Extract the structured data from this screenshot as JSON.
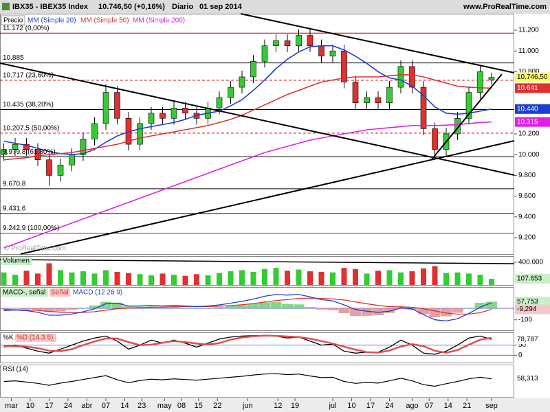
{
  "chart_data": {
    "type": "candlestick",
    "symbol": "IBX35 - IBEX35 Index",
    "quote": "10.746,50 (+0,16%)",
    "period": "Diario",
    "date": "01 sep 2014",
    "site": "www.ProRealTime.com",
    "watermark": "© ProRealTime.com",
    "price_label": "Precio",
    "close_label": "10.746,50",
    "up_color": "#33cc33",
    "down_color": "#e03030",
    "xlim": [
      -3,
      133
    ],
    "xticks": [
      {
        "value": 0,
        "label": "mar"
      },
      {
        "value": 5,
        "label": "10"
      },
      {
        "value": 10,
        "label": "17"
      },
      {
        "value": 15,
        "label": "24"
      },
      {
        "value": 20,
        "label": "abr"
      },
      {
        "value": 25,
        "label": "07"
      },
      {
        "value": 30,
        "label": "14"
      },
      {
        "value": 34.5,
        "label": "23"
      },
      {
        "value": 40.5,
        "label": "may"
      },
      {
        "value": 45,
        "label": "08"
      },
      {
        "value": 49.5,
        "label": "15"
      },
      {
        "value": 54.5,
        "label": "22"
      },
      {
        "value": 62.5,
        "label": "jun"
      },
      {
        "value": 70.5,
        "label": "12"
      },
      {
        "value": 75,
        "label": "19"
      },
      {
        "value": 85,
        "label": "jul"
      },
      {
        "value": 90,
        "label": "10"
      },
      {
        "value": 95,
        "label": "17"
      },
      {
        "value": 100,
        "label": "24"
      },
      {
        "value": 106,
        "label": "ago"
      },
      {
        "value": 110.5,
        "label": "07"
      },
      {
        "value": 115.5,
        "label": "14"
      },
      {
        "value": 120.5,
        "label": "21"
      },
      {
        "value": 127,
        "label": "sep"
      }
    ],
    "ylim": [
      9041,
      11359
    ],
    "yticks": [
      {
        "value": 11200,
        "label": "11.200"
      },
      {
        "value": 11000,
        "label": "11.000"
      },
      {
        "value": 10800,
        "label": "10.800"
      },
      {
        "value": 10200,
        "label": "10.200"
      },
      {
        "value": 10000,
        "label": "10.000"
      },
      {
        "value": 9800,
        "label": "9.800"
      },
      {
        "value": 9600,
        "label": "9.600"
      },
      {
        "value": 9400,
        "label": "9.400"
      },
      {
        "value": 9200,
        "label": "9.200"
      }
    ],
    "x": [
      -2,
      1,
      4,
      7,
      10,
      13,
      16,
      19,
      22,
      25,
      28,
      31,
      34,
      37,
      40,
      43,
      46,
      49,
      52,
      55,
      58,
      61,
      64,
      67,
      70,
      73,
      76,
      79,
      82,
      85,
      88,
      91,
      94,
      97,
      100,
      103,
      106,
      109,
      112,
      115,
      118,
      121,
      124,
      127
    ],
    "open": [
      10000,
      10050,
      10100,
      10050,
      9950,
      9800,
      9900,
      10000,
      10150,
      10300,
      10600,
      10350,
      10100,
      10300,
      10400,
      10350,
      10450,
      10400,
      10350,
      10450,
      10550,
      10650,
      10750,
      10900,
      11050,
      11100,
      11050,
      11150,
      11050,
      10950,
      11000,
      10700,
      10500,
      10550,
      10500,
      10650,
      10850,
      10650,
      10250,
      10050,
      10200,
      10350,
      10600,
      10720
    ],
    "high": [
      10110,
      10160,
      10160,
      10110,
      10010,
      9960,
      10060,
      10210,
      10360,
      10680,
      10660,
      10410,
      10360,
      10460,
      10460,
      10510,
      10510,
      10460,
      10510,
      10610,
      10710,
      10810,
      10960,
      11110,
      11160,
      11160,
      11210,
      11210,
      11110,
      11060,
      11060,
      10760,
      10610,
      10610,
      10710,
      10910,
      10910,
      10710,
      10310,
      10260,
      10410,
      10660,
      10860,
      10790
    ],
    "low": [
      9940,
      9990,
      9990,
      9890,
      9700,
      9740,
      9840,
      9940,
      10090,
      10240,
      10290,
      10040,
      10040,
      10240,
      10290,
      10290,
      10340,
      10290,
      10290,
      10390,
      10490,
      10590,
      10690,
      10840,
      10990,
      10990,
      10990,
      10990,
      10890,
      10890,
      10640,
      10440,
      10440,
      10440,
      10440,
      10590,
      10590,
      10190,
      9980,
      9990,
      10140,
      10290,
      10540,
      10680
    ],
    "close": [
      10050,
      10100,
      10050,
      9950,
      9800,
      9900,
      10000,
      10150,
      10300,
      10600,
      10350,
      10100,
      10300,
      10400,
      10350,
      10450,
      10400,
      10350,
      10450,
      10550,
      10650,
      10750,
      10900,
      11050,
      11100,
      11050,
      11150,
      11050,
      10950,
      11000,
      10700,
      10500,
      10550,
      10500,
      10650,
      10850,
      10650,
      10250,
      10050,
      10200,
      10350,
      10600,
      10800,
      10746.5
    ],
    "series": [
      {
        "name": "MM (Simple 20)",
        "color": "#1f3fd0",
        "last_label": "10.440",
        "values": [
          10130,
          10110,
          10090,
          10060,
          10030,
          10010,
          10000,
          10010,
          10050,
          10120,
          10180,
          10220,
          10250,
          10270,
          10290,
          10310,
          10340,
          10380,
          10400,
          10420,
          10470,
          10530,
          10620,
          10720,
          10830,
          10920,
          10990,
          11040,
          11050,
          11050,
          11010,
          10950,
          10880,
          10800,
          10740,
          10720,
          10660,
          10570,
          10460,
          10400,
          10390,
          10400,
          10420,
          10440
        ]
      },
      {
        "name": "MM (Simple 50)",
        "color": "#e03030",
        "last_label": "10.641",
        "values": [
          9950,
          9960,
          9970,
          9990,
          10000,
          10010,
          10020,
          10040,
          10060,
          10080,
          10100,
          10130,
          10160,
          10180,
          10200,
          10220,
          10240,
          10260,
          10280,
          10310,
          10340,
          10380,
          10430,
          10480,
          10530,
          10580,
          10620,
          10660,
          10700,
          10720,
          10740,
          10750,
          10750,
          10750,
          10760,
          10770,
          10770,
          10750,
          10720,
          10690,
          10660,
          10650,
          10645,
          10641
        ]
      },
      {
        "name": "MM (Simple 200)",
        "color": "#e020e0",
        "last_label": "10.315",
        "values": [
          9100,
          9140,
          9180,
          9220,
          9260,
          9300,
          9340,
          9380,
          9420,
          9460,
          9500,
          9540,
          9580,
          9620,
          9660,
          9700,
          9740,
          9780,
          9820,
          9860,
          9900,
          9940,
          9980,
          10020,
          10050,
          10080,
          10110,
          10140,
          10160,
          10180,
          10200,
          10220,
          10240,
          10250,
          10260,
          10270,
          10280,
          10280,
          10280,
          10285,
          10290,
          10300,
          10310,
          10315
        ]
      }
    ],
    "levels": [
      {
        "value": 11172,
        "label": "11.172 (0,00%)",
        "color": "#c00000",
        "dashed": false
      },
      {
        "value": 10885,
        "label": "10.885",
        "color": "#000000",
        "dashed": false
      },
      {
        "value": 10717,
        "label": "10.717 (23,60%)",
        "color": "#c00000",
        "dashed": true
      },
      {
        "value": 10435,
        "label": "10.435 (38,20%)",
        "color": "#000000",
        "dashed": false
      },
      {
        "value": 10207.5,
        "label": "10.207,5 (50,00%)",
        "color": "#c00000",
        "dashed": true
      },
      {
        "value": 9979.8,
        "label": "9.979,8 (61,80%)",
        "color": "#000000",
        "dashed": false
      },
      {
        "value": 9670.8,
        "label": "9.670,8",
        "color": "#000000",
        "dashed": false
      },
      {
        "value": 9431.6,
        "label": "9.431,6",
        "color": "#000000",
        "dashed": false
      },
      {
        "value": 9242.9,
        "label": "9.242,9 (100,00%)",
        "color": "#c00000",
        "dashed": false
      }
    ],
    "volume": {
      "name": "Volumen",
      "last_label": "107.653",
      "ylim": [
        0,
        494000
      ],
      "yticks": [
        {
          "value": 400000,
          "label": "400.000"
        }
      ],
      "values": [
        220000,
        180000,
        250000,
        200000,
        380000,
        260000,
        220000,
        240000,
        200000,
        260000,
        230000,
        210000,
        190000,
        170000,
        200000,
        180000,
        160000,
        190000,
        170000,
        210000,
        240000,
        260000,
        230000,
        280000,
        300000,
        250000,
        270000,
        240000,
        230000,
        220000,
        300000,
        280000,
        200000,
        250000,
        260000,
        220000,
        240000,
        290000,
        330000,
        210000,
        220000,
        200000,
        180000,
        107653
      ]
    },
    "macd": {
      "ylim": [
        -197,
        179
      ],
      "yticks": [
        -100
      ],
      "series": [
        {
          "name": "MACD-, señal",
          "color": "#66cc66",
          "negative_color": "#e08888",
          "last_label": "57,753",
          "bars": true,
          "values": [
            -10,
            -3,
            -6,
            -17,
            -33,
            -26,
            -13,
            6,
            25,
            56,
            49,
            19,
            15,
            16,
            9,
            11,
            5,
            0,
            4,
            11,
            21,
            29,
            39,
            51,
            53,
            38,
            34,
            11,
            -11,
            -17,
            -42,
            -66,
            -65,
            -60,
            -40,
            -8,
            -14,
            -51,
            -77,
            -69,
            -39,
            5,
            48,
            57.753
          ]
        },
        {
          "name": "Señal",
          "color": "#e03030",
          "last_label": "-9,294",
          "values": [
            -10,
            -12,
            -14,
            -18,
            -27,
            -34,
            -37,
            -36,
            -30,
            -16,
            -4,
            1,
            5,
            9,
            11,
            14,
            15,
            15,
            16,
            19,
            24,
            31,
            41,
            54,
            67,
            77,
            86,
            89,
            86,
            82,
            72,
            56,
            40,
            25,
            15,
            13,
            9,
            -4,
            -23,
            -41,
            -51,
            -50,
            -38,
            -9.294
          ]
        },
        {
          "name": "MACD (12 26 9)",
          "color": "#1f3fd0",
          "values": [
            -20,
            -15,
            -20,
            -35,
            -60,
            -60,
            -50,
            -30,
            -5,
            40,
            45,
            20,
            20,
            25,
            20,
            25,
            20,
            15,
            20,
            30,
            45,
            60,
            80,
            105,
            120,
            115,
            120,
            100,
            75,
            65,
            30,
            -10,
            -25,
            -35,
            -25,
            5,
            -5,
            -55,
            -100,
            -110,
            -90,
            -45,
            10,
            48.459
          ]
        }
      ]
    },
    "stochastic": {
      "ylim": [
        -40,
        110
      ],
      "yticks": [
        0,
        50
      ],
      "series": [
        {
          "name": "%K",
          "color": "#000000",
          "last_label": "78,787",
          "values": [
            40,
            50,
            35,
            20,
            10,
            30,
            50,
            70,
            85,
            95,
            70,
            30,
            50,
            75,
            60,
            75,
            60,
            40,
            60,
            80,
            90,
            95,
            97,
            98,
            95,
            85,
            90,
            70,
            50,
            55,
            20,
            10,
            15,
            15,
            40,
            75,
            50,
            10,
            5,
            20,
            50,
            85,
            95,
            78.787
          ]
        },
        {
          "name": "%D (14 3 5)",
          "color": "#e05050",
          "values": [
            45,
            45,
            42,
            35,
            22,
            20,
            30,
            50,
            68,
            83,
            83,
            65,
            50,
            52,
            62,
            70,
            65,
            58,
            53,
            60,
            77,
            88,
            94,
            97,
            96,
            93,
            90,
            82,
            70,
            58,
            42,
            28,
            15,
            13,
            23,
            43,
            55,
            45,
            22,
            12,
            25,
            52,
            77,
            86
          ]
        }
      ]
    },
    "rsi": {
      "name": "RSI (14)",
      "color": "#000000",
      "last_label": "58,313",
      "ylim": [
        0,
        100
      ],
      "values": [
        50,
        52,
        48,
        44,
        38,
        45,
        50,
        56,
        62,
        68,
        55,
        46,
        53,
        57,
        55,
        58,
        56,
        54,
        57,
        60,
        63,
        66,
        70,
        73,
        74,
        71,
        73,
        67,
        62,
        63,
        50,
        44,
        47,
        45,
        52,
        60,
        52,
        40,
        35,
        43,
        50,
        58,
        63,
        58.313
      ]
    }
  }
}
